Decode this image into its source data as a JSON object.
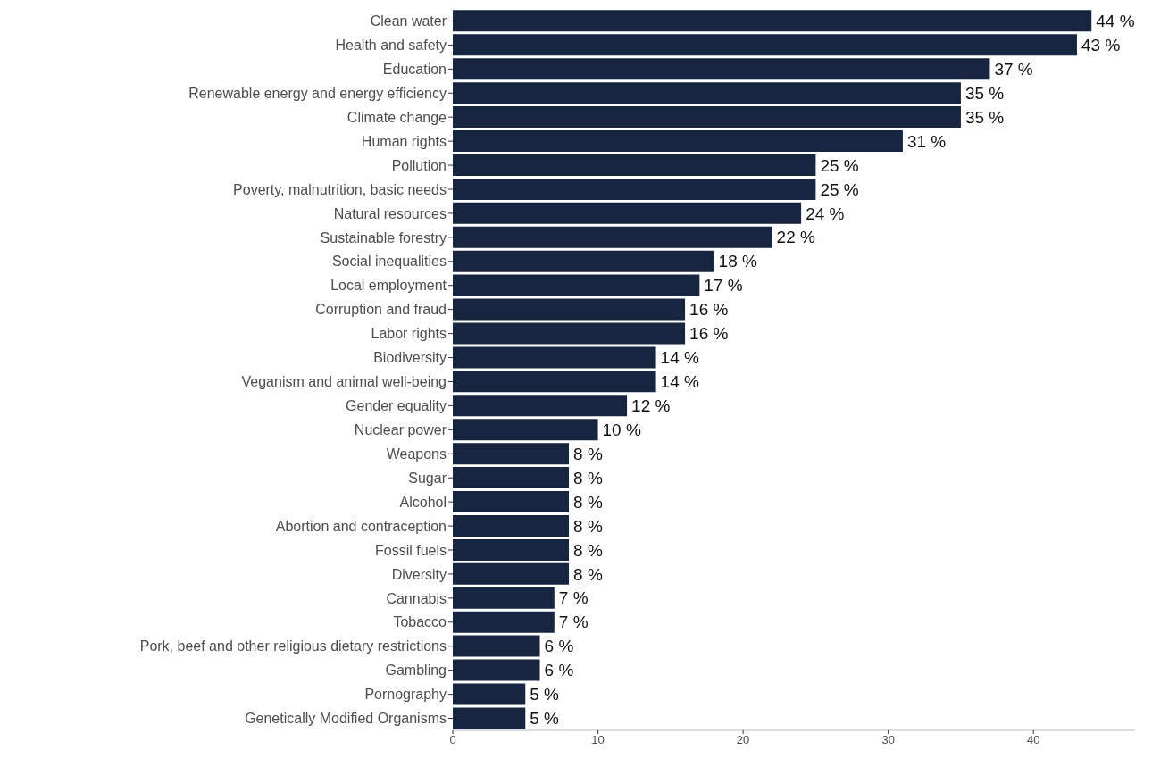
{
  "chart_data": {
    "type": "bar",
    "orientation": "horizontal",
    "categories": [
      "Clean water",
      "Health and safety",
      "Education",
      "Renewable energy and energy efficiency",
      "Climate change",
      "Human rights",
      "Pollution",
      "Poverty, malnutrition, basic needs",
      "Natural resources",
      "Sustainable forestry",
      "Social inequalities",
      "Local employment",
      "Corruption and fraud",
      "Labor rights",
      "Biodiversity",
      "Veganism and animal well-being",
      "Gender equality",
      "Nuclear power",
      "Weapons",
      "Sugar",
      "Alcohol",
      "Abortion and contraception",
      "Fossil fuels",
      "Diversity",
      "Cannabis",
      "Tobacco",
      "Pork, beef and other religious dietary restrictions",
      "Gambling",
      "Pornography",
      "Genetically Modified Organisms"
    ],
    "values": [
      44,
      43,
      37,
      35,
      35,
      31,
      25,
      25,
      24,
      22,
      18,
      17,
      16,
      16,
      14,
      14,
      12,
      10,
      8,
      8,
      8,
      8,
      8,
      8,
      7,
      7,
      6,
      6,
      5,
      5
    ],
    "value_labels": [
      "44 %",
      "43 %",
      "37 %",
      "35 %",
      "35 %",
      "31 %",
      "25 %",
      "25 %",
      "24 %",
      "22 %",
      "18 %",
      "17 %",
      "16 %",
      "16 %",
      "14 %",
      "14 %",
      "12 %",
      "10 %",
      "8 %",
      "8 %",
      "8 %",
      "8 %",
      "8 %",
      "8 %",
      "7 %",
      "7 %",
      "6 %",
      "6 %",
      "5 %",
      "5 %"
    ],
    "color": "#172540",
    "xlim": [
      0,
      47
    ],
    "xticks": [
      0,
      10,
      20,
      30,
      40
    ]
  }
}
